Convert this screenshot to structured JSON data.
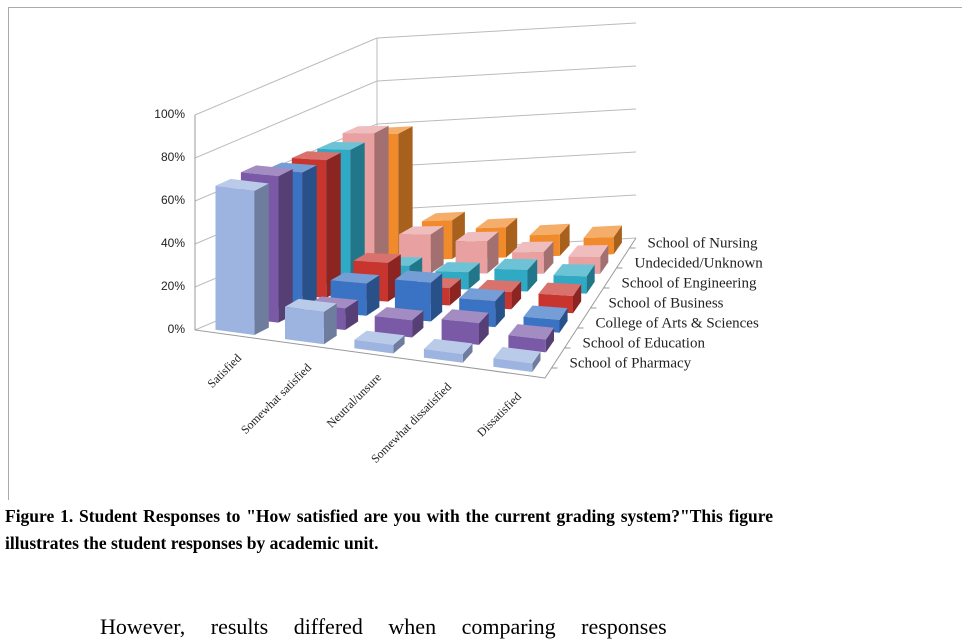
{
  "chart_data": {
    "type": "bar3d",
    "categories": [
      "Satisfied",
      "Somewhat satisfied",
      "Neutral/unsure",
      "Somewhat dissatisfied",
      "Dissatisfied"
    ],
    "series": [
      {
        "name": "School of Pharmacy",
        "color": "#9db3e0",
        "values": [
          67,
          15,
          4,
          4,
          4
        ]
      },
      {
        "name": "School of Education",
        "color": "#7a5aa6",
        "values": [
          68,
          10,
          8,
          10,
          6
        ]
      },
      {
        "name": "College of Arts & Sciences",
        "color": "#3a73c4",
        "values": [
          64,
          15,
          18,
          12,
          6
        ]
      },
      {
        "name": "School of Business",
        "color": "#c8352f",
        "values": [
          64,
          18,
          8,
          8,
          8
        ]
      },
      {
        "name": "School of Engineering",
        "color": "#2fa9c4",
        "values": [
          63,
          10,
          8,
          10,
          8
        ]
      },
      {
        "name": "Undecided/Unknown",
        "color": "#e8a0a0",
        "values": [
          65,
          18,
          15,
          10,
          8
        ]
      },
      {
        "name": "School of Nursing",
        "color": "#f08a2a",
        "values": [
          59,
          18,
          14,
          10,
          8
        ]
      }
    ],
    "ylim": [
      0,
      100
    ],
    "yticks": [
      {
        "value": 0,
        "label": "0%"
      },
      {
        "value": 20,
        "label": "20%"
      },
      {
        "value": 40,
        "label": "40%"
      },
      {
        "value": 60,
        "label": "60%"
      },
      {
        "value": 80,
        "label": "80%"
      },
      {
        "value": 100,
        "label": "100%"
      }
    ],
    "grid": true
  },
  "caption": "Figure 1. Student Responses to \"How satisfied are you with the current grading system?\"This figure illustrates the student responses by academic unit.",
  "body": "However, results differed when comparing responses"
}
